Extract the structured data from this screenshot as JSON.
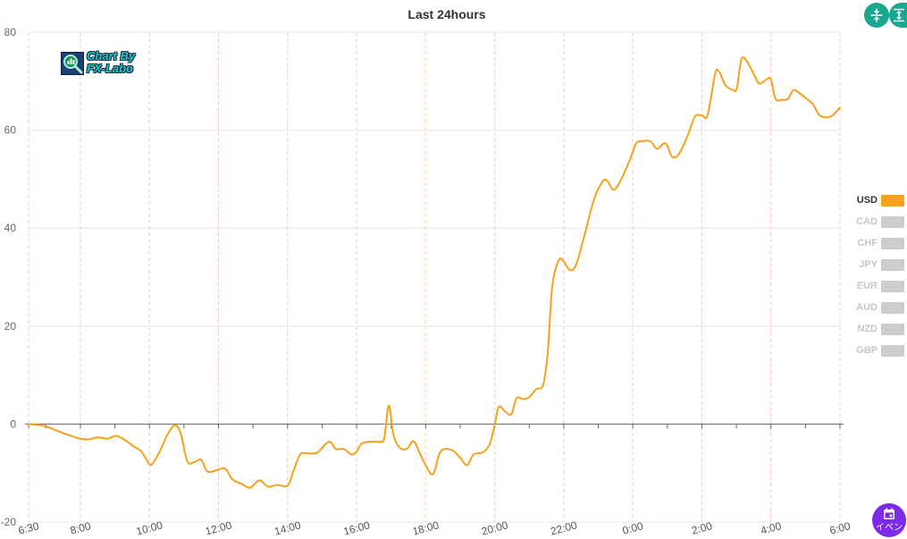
{
  "chart_data": {
    "type": "line",
    "title": "Last 24hours",
    "xlabel": "",
    "ylabel": "",
    "x_ticks": [
      "6:30",
      "8:00",
      "10:00",
      "12:00",
      "14:00",
      "16:00",
      "18:00",
      "20:00",
      "22:00",
      "0:00",
      "2:00",
      "4:00",
      "6:00"
    ],
    "y_ticks": [
      80,
      60,
      40,
      20,
      0,
      -20
    ],
    "xlim": [
      "6:30",
      "6:00"
    ],
    "ylim": [
      -20,
      80
    ],
    "grid": true,
    "legend_position": "right",
    "series": [
      {
        "name": "USD",
        "active": true,
        "color": "#f5a11c",
        "points": [
          [
            "6:30",
            0
          ],
          [
            "6:58",
            -0.4
          ],
          [
            "7:29",
            -1.8
          ],
          [
            "8:00",
            -3.0
          ],
          [
            "8:16",
            -3.1
          ],
          [
            "8:31",
            -2.7
          ],
          [
            "8:47",
            -3.0
          ],
          [
            "9:02",
            -2.4
          ],
          [
            "9:18",
            -3.3
          ],
          [
            "9:33",
            -4.6
          ],
          [
            "9:46",
            -5.6
          ],
          [
            "10:00",
            -8.2
          ],
          [
            "10:07",
            -7.8
          ],
          [
            "10:20",
            -5.1
          ],
          [
            "10:32",
            -2.0
          ],
          [
            "10:45",
            -0.2
          ],
          [
            "10:55",
            -2.2
          ],
          [
            "11:06",
            -7.7
          ],
          [
            "11:19",
            -7.7
          ],
          [
            "11:30",
            -7.3
          ],
          [
            "11:41",
            -9.7
          ],
          [
            "12:00",
            -9.3
          ],
          [
            "12:12",
            -9.1
          ],
          [
            "12:24",
            -11.3
          ],
          [
            "12:40",
            -12.2
          ],
          [
            "12:55",
            -13.0
          ],
          [
            "13:11",
            -11.5
          ],
          [
            "13:26",
            -12.8
          ],
          [
            "13:42",
            -12.4
          ],
          [
            "14:00",
            -12.6
          ],
          [
            "14:10",
            -9.7
          ],
          [
            "14:22",
            -6.2
          ],
          [
            "14:36",
            -6.0
          ],
          [
            "14:52",
            -5.8
          ],
          [
            "15:12",
            -3.6
          ],
          [
            "15:24",
            -5.1
          ],
          [
            "15:38",
            -5.1
          ],
          [
            "15:51",
            -6.2
          ],
          [
            "16:00",
            -5.6
          ],
          [
            "16:09",
            -4.0
          ],
          [
            "16:25",
            -3.6
          ],
          [
            "16:40",
            -3.6
          ],
          [
            "16:48",
            -2.9
          ],
          [
            "16:56",
            3.8
          ],
          [
            "17:04",
            -2.2
          ],
          [
            "17:14",
            -4.7
          ],
          [
            "17:27",
            -5.1
          ],
          [
            "17:39",
            -3.5
          ],
          [
            "17:50",
            -6.0
          ],
          [
            "18:00",
            -8.4
          ],
          [
            "18:13",
            -10.2
          ],
          [
            "18:26",
            -5.6
          ],
          [
            "18:45",
            -5.3
          ],
          [
            "19:00",
            -6.9
          ],
          [
            "19:12",
            -8.4
          ],
          [
            "19:23",
            -6.2
          ],
          [
            "19:39",
            -5.8
          ],
          [
            "19:51",
            -4.2
          ],
          [
            "20:00",
            -0.2
          ],
          [
            "20:07",
            3.5
          ],
          [
            "20:18",
            2.6
          ],
          [
            "20:29",
            2.0
          ],
          [
            "20:38",
            5.3
          ],
          [
            "20:49",
            5.1
          ],
          [
            "21:00",
            5.5
          ],
          [
            "21:12",
            7.1
          ],
          [
            "21:24",
            8.0
          ],
          [
            "21:32",
            14.4
          ],
          [
            "21:40",
            28.1
          ],
          [
            "21:51",
            33.4
          ],
          [
            "22:00",
            33.2
          ],
          [
            "22:11",
            31.4
          ],
          [
            "22:22",
            32.7
          ],
          [
            "22:37",
            39.0
          ],
          [
            "22:53",
            46.0
          ],
          [
            "23:08",
            49.6
          ],
          [
            "23:16",
            49.6
          ],
          [
            "23:27",
            47.8
          ],
          [
            "23:40",
            50.0
          ],
          [
            "23:55",
            54.0
          ],
          [
            "0:06",
            57.3
          ],
          [
            "0:19",
            57.8
          ],
          [
            "0:31",
            57.7
          ],
          [
            "0:42",
            56.2
          ],
          [
            "0:57",
            57.3
          ],
          [
            "1:08",
            54.6
          ],
          [
            "1:20",
            55.1
          ],
          [
            "1:36",
            59.1
          ],
          [
            "1:48",
            62.8
          ],
          [
            "2:00",
            63.0
          ],
          [
            "2:10",
            63.1
          ],
          [
            "2:23",
            71.5
          ],
          [
            "2:30",
            71.9
          ],
          [
            "2:41",
            69.2
          ],
          [
            "2:54",
            68.2
          ],
          [
            "3:01",
            68.6
          ],
          [
            "3:09",
            74.6
          ],
          [
            "3:20",
            73.7
          ],
          [
            "3:32",
            71.0
          ],
          [
            "3:40",
            69.5
          ],
          [
            "3:53",
            70.4
          ],
          [
            "4:00",
            70.4
          ],
          [
            "4:08",
            66.4
          ],
          [
            "4:19",
            66.2
          ],
          [
            "4:30",
            66.4
          ],
          [
            "4:39",
            68.2
          ],
          [
            "4:50",
            67.5
          ],
          [
            "5:02",
            66.4
          ],
          [
            "5:13",
            65.3
          ],
          [
            "5:24",
            63.1
          ],
          [
            "5:37",
            62.6
          ],
          [
            "5:47",
            63.0
          ],
          [
            "6:00",
            64.6
          ]
        ]
      },
      {
        "name": "CAD",
        "active": false
      },
      {
        "name": "CHF",
        "active": false
      },
      {
        "name": "JPY",
        "active": false
      },
      {
        "name": "EUR",
        "active": false
      },
      {
        "name": "AUD",
        "active": false
      },
      {
        "name": "NZD",
        "active": false
      },
      {
        "name": "GBP",
        "active": false
      }
    ]
  },
  "logo": {
    "icon": "magnifier-chart-icon",
    "line1": "Chart By",
    "line2": "FX-Labo"
  },
  "controls": {
    "compress_icon": "compress-vertical-icon",
    "expand_icon": "expand-vertical-icon"
  },
  "event_button": {
    "icon": "calendar-icon",
    "label": "イベン"
  },
  "colors": {
    "accent": "#17a88f",
    "event": "#7b2ae8",
    "inactive": "#cccccc",
    "legend_active_text": "#333333",
    "legend_inactive_text": "#c6c6c6",
    "h_grid": "#e6e6e6",
    "v_grid": "#f7cbb4",
    "axis": "#666666",
    "tick_text": "#555555"
  }
}
